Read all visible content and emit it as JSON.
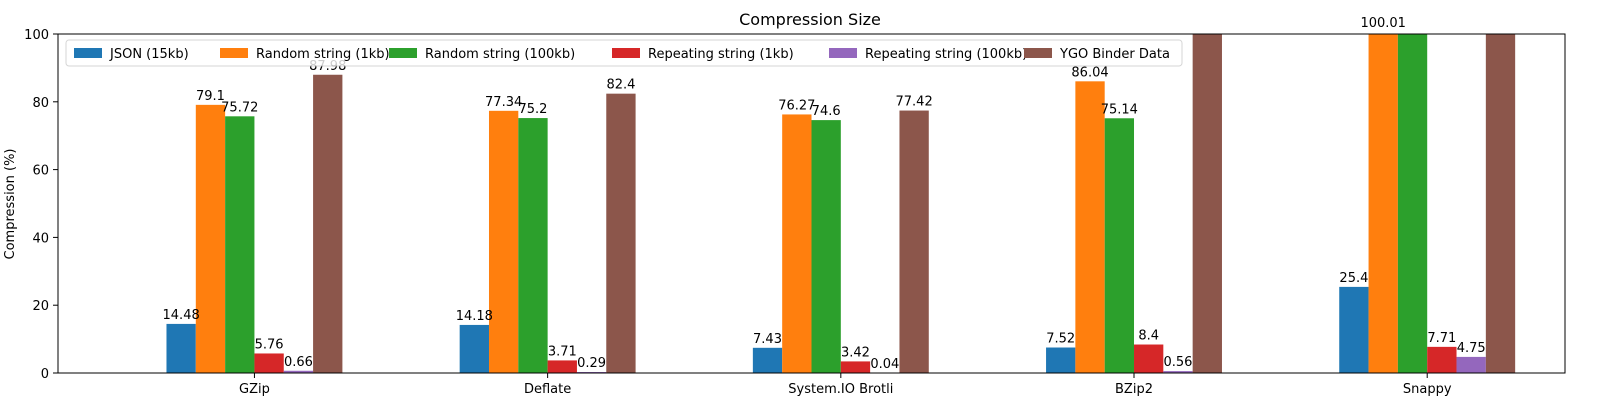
{
  "chart_data": {
    "type": "bar",
    "title": "Compression Size",
    "xlabel": "",
    "ylabel": "Compression (%)",
    "ylim": [
      0,
      100
    ],
    "yticks": [
      0,
      20,
      40,
      60,
      80,
      100
    ],
    "grid": false,
    "legend_position": "top-left",
    "categories": [
      "GZip",
      "Deflate",
      "System.IO Brotli",
      "BZip2",
      "Snappy"
    ],
    "series": [
      {
        "name": "JSON (15kb)",
        "color": "#1f77b4",
        "values": [
          14.48,
          14.18,
          7.43,
          7.52,
          25.4
        ],
        "labels": [
          "14.48",
          "14.18",
          "7.43",
          "7.52",
          "25.4"
        ]
      },
      {
        "name": "Random string (1kb)",
        "color": "#ff7f0e",
        "values": [
          79.1,
          77.34,
          76.27,
          86.04,
          100.01
        ],
        "labels": [
          "79.1",
          "77.34",
          "76.27",
          "86.04",
          "100.01"
        ]
      },
      {
        "name": "Random string (100kb)",
        "color": "#2ca02c",
        "values": [
          75.72,
          75.2,
          74.6,
          75.14,
          100.01
        ],
        "labels": [
          "75.72",
          "75.2",
          "74.6",
          "75.14",
          ""
        ]
      },
      {
        "name": "Repeating string (1kb)",
        "color": "#d62728",
        "values": [
          5.76,
          3.71,
          3.42,
          8.4,
          7.71
        ],
        "labels": [
          "5.76",
          "3.71",
          "3.42",
          "8.4",
          "7.71"
        ]
      },
      {
        "name": "Repeating string (100kb)",
        "color": "#9467bd",
        "values": [
          0.66,
          0.29,
          0.04,
          0.56,
          4.75
        ],
        "labels": [
          "0.66",
          "0.29",
          "0.04",
          "0.56",
          "4.75"
        ]
      },
      {
        "name": "YGO Binder Data",
        "color": "#8c564b",
        "values": [
          87.98,
          82.4,
          77.42,
          100.5,
          100.5
        ],
        "labels": [
          "87.98",
          "82.4",
          "77.42",
          "",
          ""
        ]
      }
    ]
  }
}
